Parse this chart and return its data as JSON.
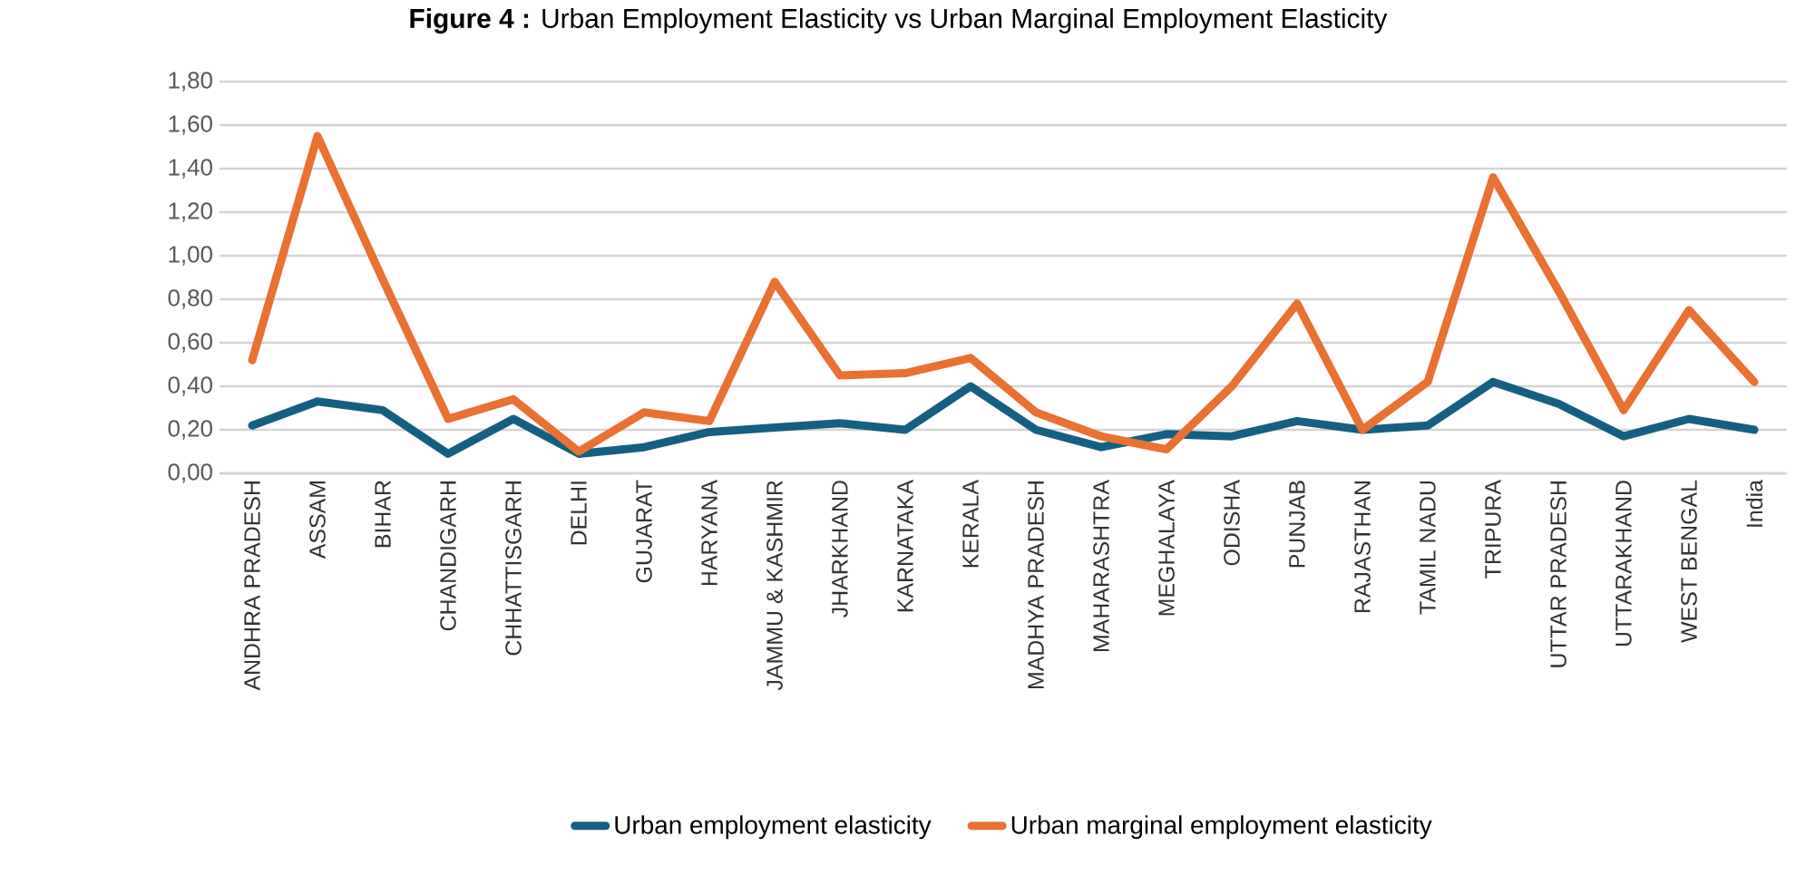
{
  "chart_data": {
    "type": "line",
    "title": "**Figure 4 :** Urban Employment Elasticity vs Urban Marginal Employment Elasticity",
    "categories": [
      "ANDHRA PRADESH",
      "ASSAM",
      "BIHAR",
      "CHANDIGARH",
      "CHHATTISGARH",
      "DELHI",
      "GUJARAT",
      "HARYANA",
      "JAMMU & KASHMIR",
      "JHARKHAND",
      "KARNATAKA",
      "KERALA",
      "MADHYA PRADESH",
      "MAHARASHTRA",
      "MEGHALAYA",
      "ODISHA",
      "PUNJAB",
      "RAJASTHAN",
      "TAMIL NADU",
      "TRIPURA",
      "UTTAR PRADESH",
      "UTTARAKHAND",
      "WEST BENGAL",
      "India"
    ],
    "series": [
      {
        "name": "Urban employment elasticity",
        "color": "#156082",
        "values": [
          0.22,
          0.33,
          0.29,
          0.09,
          0.25,
          0.09,
          0.12,
          0.19,
          0.21,
          0.23,
          0.2,
          0.4,
          0.2,
          0.12,
          0.18,
          0.17,
          0.24,
          0.2,
          0.22,
          0.42,
          0.32,
          0.17,
          0.25,
          0.2
        ]
      },
      {
        "name": "Urban marginal employment elasticity",
        "color": "#e97132",
        "values": [
          0.52,
          1.55,
          0.89,
          0.25,
          0.34,
          0.1,
          0.28,
          0.24,
          0.88,
          0.45,
          0.46,
          0.53,
          0.28,
          0.17,
          0.11,
          0.4,
          0.78,
          0.2,
          0.42,
          1.36,
          0.84,
          0.29,
          0.75,
          0.42
        ]
      }
    ],
    "ylim": [
      0,
      1.8
    ],
    "yticks": [
      {
        "value": 0,
        "label": "0,00"
      },
      {
        "value": 0.2,
        "label": "0,20"
      },
      {
        "value": 0.4,
        "label": "0,40"
      },
      {
        "value": 0.6,
        "label": "0,60"
      },
      {
        "value": 0.8,
        "label": "0,80"
      },
      {
        "value": 1.0,
        "label": "1,00"
      },
      {
        "value": 1.2,
        "label": "1,20"
      },
      {
        "value": 1.4,
        "label": "1,40"
      },
      {
        "value": 1.6,
        "label": "1,60"
      },
      {
        "value": 1.8,
        "label": "1,80"
      }
    ],
    "grid": "y",
    "legend": "bottom",
    "line_style": "solid"
  }
}
